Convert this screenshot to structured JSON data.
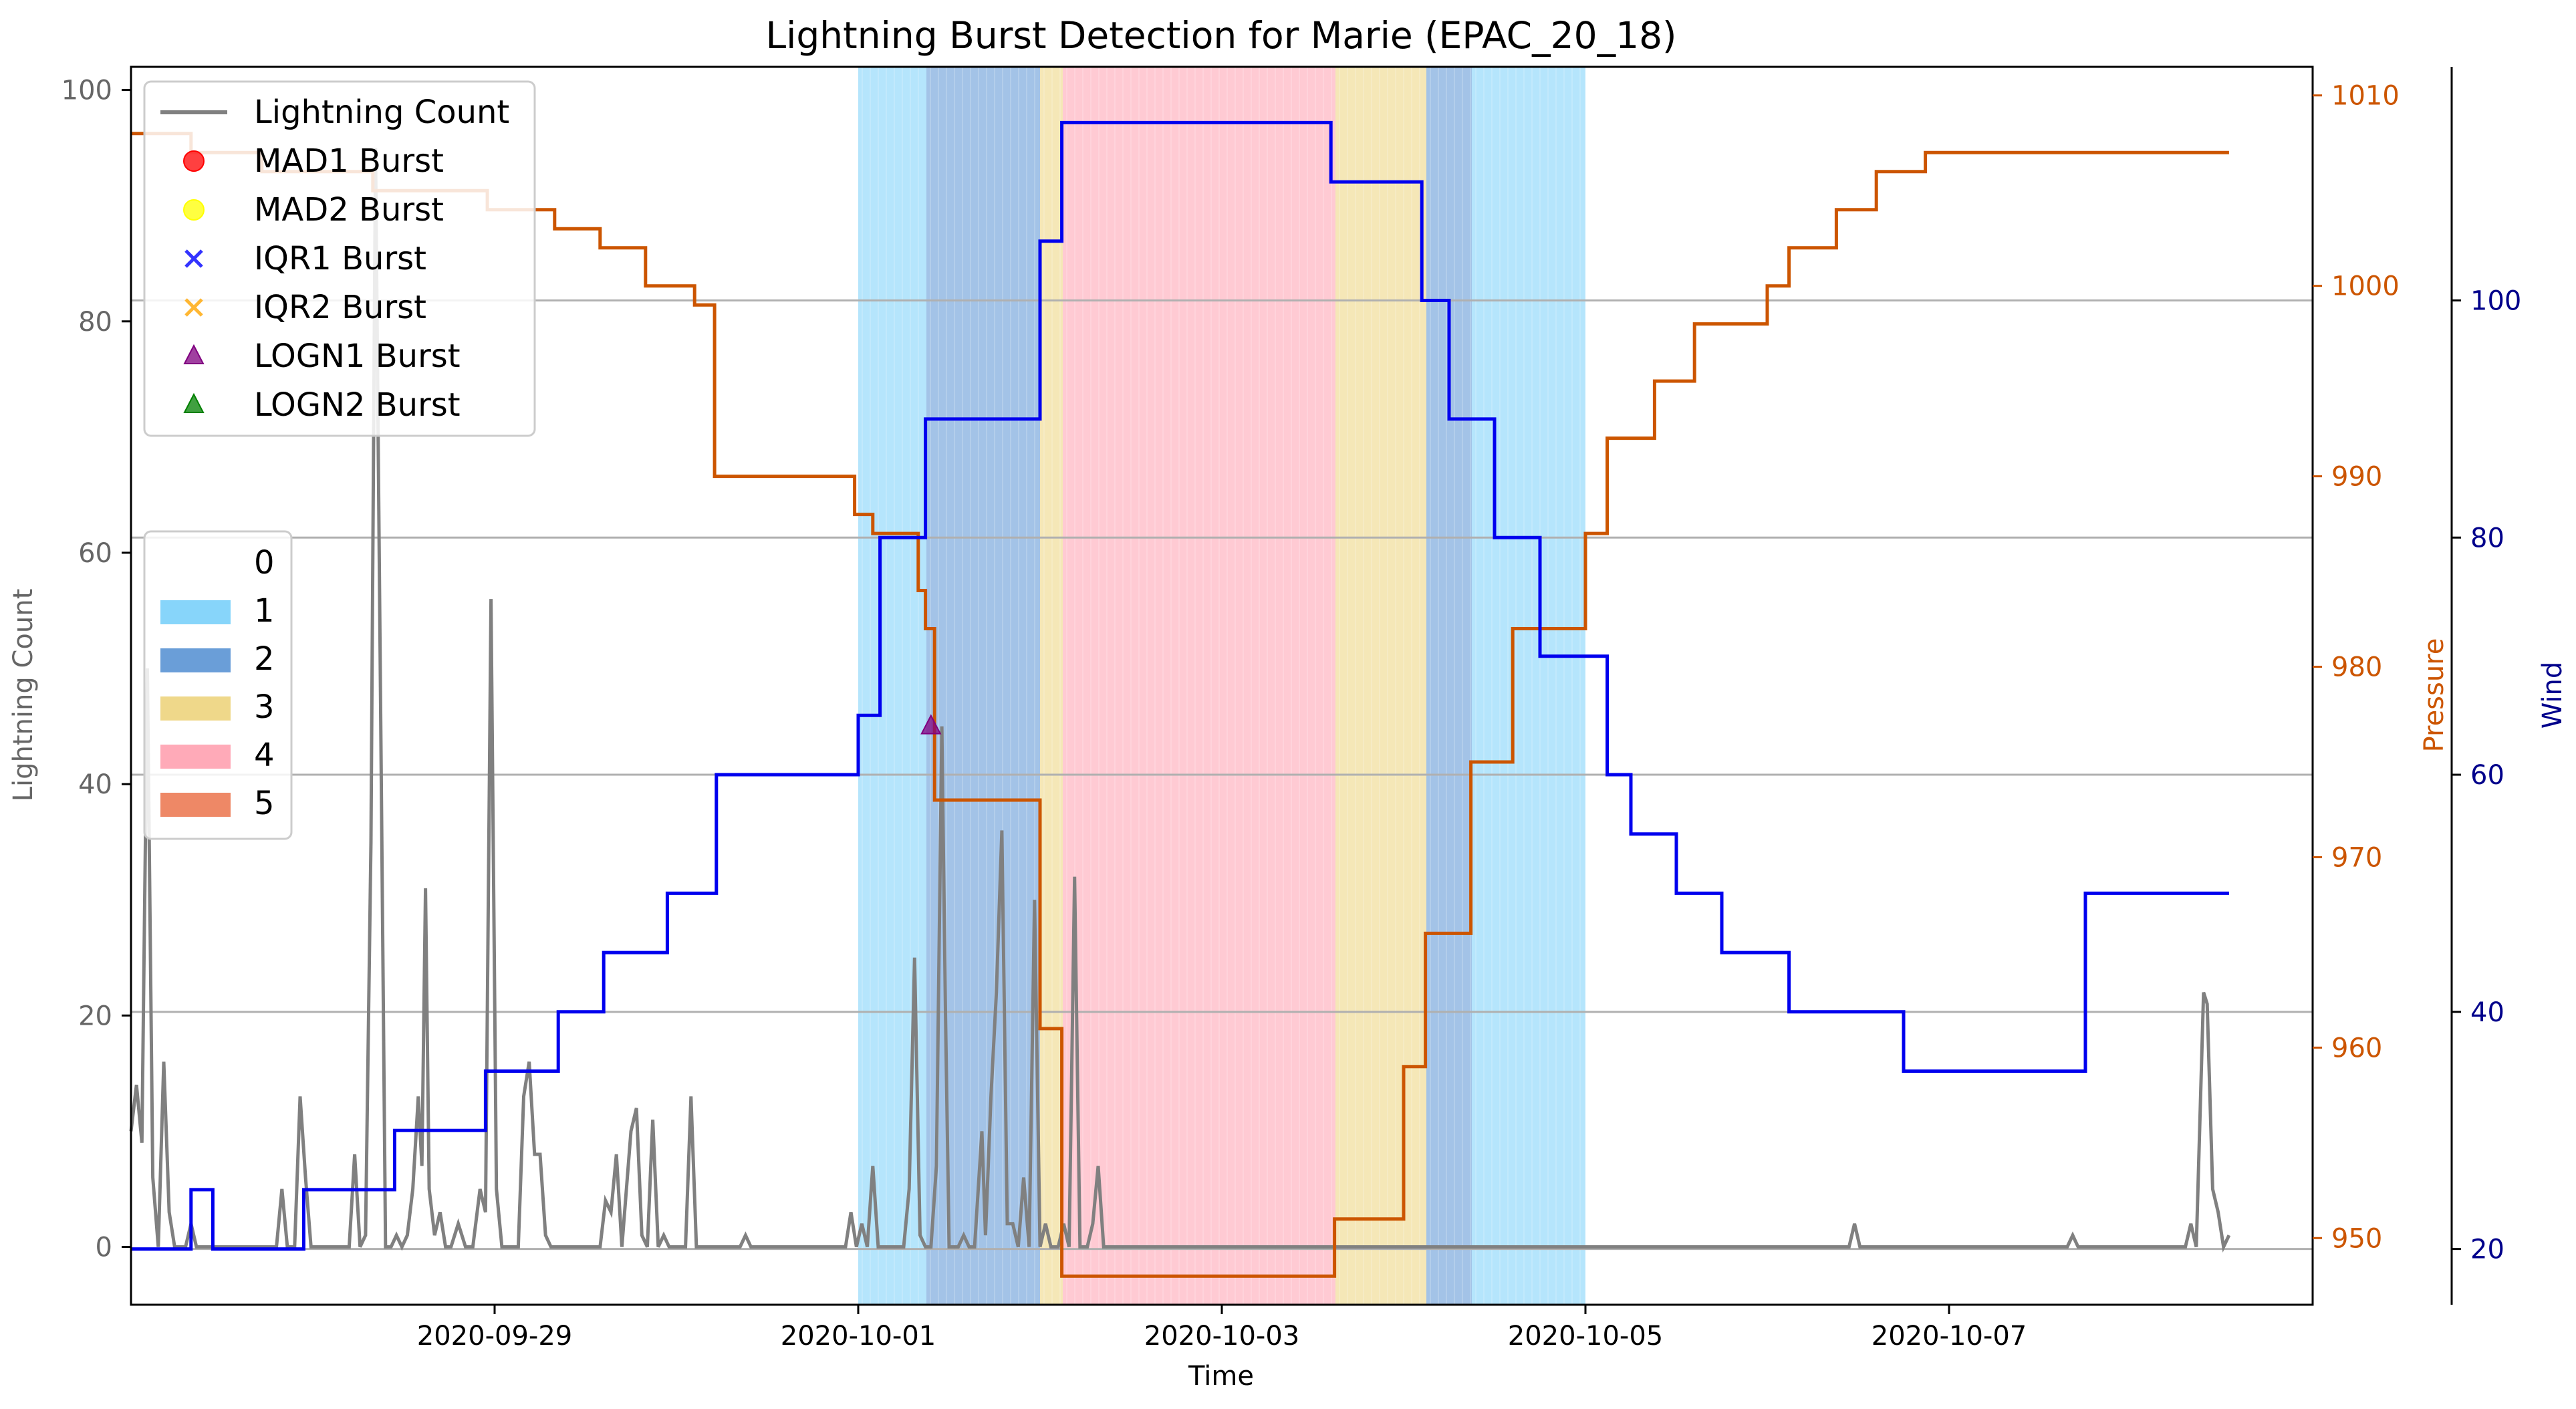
{
  "chart_data": {
    "type": "line",
    "title": "Lightning Burst Detection for Marie (EPAC_20_18)",
    "xlabel": "Time",
    "ylabel_left": "Lightning Count",
    "ylabel_pressure": "Pressure",
    "ylabel_wind": "Wind",
    "x_range": [
      "2020-09-27 18:00",
      "2020-10-08 06:00"
    ],
    "ylim_left": [
      -5,
      102
    ],
    "ylim_pressure": [
      946.5,
      1011.5
    ],
    "ylim_wind": [
      15.3,
      119.7
    ],
    "grid": "horizontal, on right axis",
    "x_ticks": [
      "2020-09-29",
      "2020-10-01",
      "2020-10-03",
      "2020-10-05",
      "2020-10-07"
    ],
    "x_tick_positions": [
      2,
      4,
      6,
      8,
      10
    ],
    "y_ticks_left": [
      0,
      20,
      40,
      60,
      80,
      100
    ],
    "y_ticks_pressure": [
      950,
      960,
      970,
      980,
      990,
      1000,
      1010
    ],
    "y_ticks_wind": [
      20,
      40,
      60,
      80,
      100
    ],
    "colors": {
      "lightning": "#808080",
      "pressure": "#cc5500",
      "wind": "#0000ee",
      "left_axis_text": "#666666",
      "pressure_axis_text": "#cc5500",
      "wind_axis_text": "#00008b"
    },
    "legend_series": [
      {
        "label": "Lightning Count",
        "marker": "line",
        "color": "#808080"
      },
      {
        "label": "MAD1 Burst",
        "marker": "circle",
        "color": "#ff0000"
      },
      {
        "label": "MAD2 Burst",
        "marker": "circle",
        "color": "#ffff00"
      },
      {
        "label": "IQR1 Burst",
        "marker": "x",
        "color": "#0000ff"
      },
      {
        "label": "IQR2 Burst",
        "marker": "x",
        "color": "#ffa500"
      },
      {
        "label": "LOGN1 Burst",
        "marker": "triangle",
        "color": "#800080"
      },
      {
        "label": "LOGN2 Burst",
        "marker": "triangle",
        "color": "#008000"
      }
    ],
    "legend_categories": [
      {
        "label": "0",
        "color": "#ffffff"
      },
      {
        "label": "1",
        "color": "#87d5fa"
      },
      {
        "label": "2",
        "color": "#6a9ed8"
      },
      {
        "label": "3",
        "color": "#efd88a"
      },
      {
        "label": "4",
        "color": "#ffaab8"
      },
      {
        "label": "5",
        "color": "#ee8866"
      }
    ],
    "category_spans": [
      {
        "start": 4.0,
        "end": 4.375,
        "category": 1
      },
      {
        "start": 4.375,
        "end": 5.0,
        "category": 2
      },
      {
        "start": 5.0,
        "end": 5.125,
        "category": 3
      },
      {
        "start": 5.125,
        "end": 6.625,
        "category": 4
      },
      {
        "start": 6.625,
        "end": 7.125,
        "category": 3
      },
      {
        "start": 7.125,
        "end": 7.375,
        "category": 2
      },
      {
        "start": 7.375,
        "end": 8.0,
        "category": 1
      }
    ],
    "lightning_count": [
      [
        0.0,
        10
      ],
      [
        0.03,
        14
      ],
      [
        0.06,
        9
      ],
      [
        0.09,
        50
      ],
      [
        0.12,
        6
      ],
      [
        0.15,
        0
      ],
      [
        0.18,
        16
      ],
      [
        0.21,
        3
      ],
      [
        0.24,
        0
      ],
      [
        0.3,
        0
      ],
      [
        0.33,
        2
      ],
      [
        0.36,
        0
      ],
      [
        0.45,
        0
      ],
      [
        0.8,
        0
      ],
      [
        0.83,
        5
      ],
      [
        0.86,
        0
      ],
      [
        0.9,
        0
      ],
      [
        0.93,
        13
      ],
      [
        0.96,
        6
      ],
      [
        0.99,
        0
      ],
      [
        1.05,
        0
      ],
      [
        1.1,
        0
      ],
      [
        1.2,
        0
      ],
      [
        1.23,
        8
      ],
      [
        1.26,
        0
      ],
      [
        1.29,
        1
      ],
      [
        1.32,
        35
      ],
      [
        1.345,
        95
      ],
      [
        1.37,
        52
      ],
      [
        1.4,
        0
      ],
      [
        1.43,
        0
      ],
      [
        1.46,
        1
      ],
      [
        1.49,
        0
      ],
      [
        1.52,
        1
      ],
      [
        1.55,
        5
      ],
      [
        1.58,
        13
      ],
      [
        1.6,
        7
      ],
      [
        1.62,
        31
      ],
      [
        1.64,
        5
      ],
      [
        1.67,
        1
      ],
      [
        1.7,
        3
      ],
      [
        1.73,
        0
      ],
      [
        1.76,
        0
      ],
      [
        1.8,
        2
      ],
      [
        1.84,
        0
      ],
      [
        1.88,
        0
      ],
      [
        1.92,
        5
      ],
      [
        1.95,
        3
      ],
      [
        1.98,
        56
      ],
      [
        2.01,
        5
      ],
      [
        2.04,
        0
      ],
      [
        2.1,
        0
      ],
      [
        2.13,
        0
      ],
      [
        2.16,
        13
      ],
      [
        2.19,
        16
      ],
      [
        2.22,
        8
      ],
      [
        2.25,
        8
      ],
      [
        2.28,
        1
      ],
      [
        2.31,
        0
      ],
      [
        2.5,
        0
      ],
      [
        2.58,
        0
      ],
      [
        2.61,
        4
      ],
      [
        2.64,
        3
      ],
      [
        2.67,
        8
      ],
      [
        2.7,
        0
      ],
      [
        2.75,
        10
      ],
      [
        2.78,
        12
      ],
      [
        2.81,
        1
      ],
      [
        2.84,
        0
      ],
      [
        2.87,
        11
      ],
      [
        2.9,
        0
      ],
      [
        2.93,
        1
      ],
      [
        2.96,
        0
      ],
      [
        3.0,
        0
      ],
      [
        3.05,
        0
      ],
      [
        3.08,
        13
      ],
      [
        3.11,
        0
      ],
      [
        3.2,
        0
      ],
      [
        3.35,
        0
      ],
      [
        3.38,
        1
      ],
      [
        3.41,
        0
      ],
      [
        3.6,
        0
      ],
      [
        3.93,
        0
      ],
      [
        3.96,
        3
      ],
      [
        3.99,
        0
      ],
      [
        4.02,
        2
      ],
      [
        4.05,
        0
      ],
      [
        4.08,
        7
      ],
      [
        4.11,
        0
      ],
      [
        4.2,
        0
      ],
      [
        4.25,
        0
      ],
      [
        4.28,
        5
      ],
      [
        4.31,
        25
      ],
      [
        4.34,
        1
      ],
      [
        4.37,
        0
      ],
      [
        4.4,
        0
      ],
      [
        4.43,
        7
      ],
      [
        4.46,
        45
      ],
      [
        4.48,
        20
      ],
      [
        4.5,
        0
      ],
      [
        4.55,
        0
      ],
      [
        4.58,
        1
      ],
      [
        4.61,
        0
      ],
      [
        4.64,
        0
      ],
      [
        4.68,
        10
      ],
      [
        4.7,
        1
      ],
      [
        4.73,
        13
      ],
      [
        4.76,
        22
      ],
      [
        4.79,
        36
      ],
      [
        4.82,
        2
      ],
      [
        4.85,
        2
      ],
      [
        4.88,
        0
      ],
      [
        4.91,
        6
      ],
      [
        4.94,
        0
      ],
      [
        4.97,
        30
      ],
      [
        5.0,
        0
      ],
      [
        5.03,
        2
      ],
      [
        5.06,
        0
      ],
      [
        5.1,
        0
      ],
      [
        5.13,
        2
      ],
      [
        5.16,
        0
      ],
      [
        5.19,
        32
      ],
      [
        5.22,
        0
      ],
      [
        5.26,
        0
      ],
      [
        5.29,
        2
      ],
      [
        5.32,
        7
      ],
      [
        5.35,
        0
      ],
      [
        5.5,
        0
      ],
      [
        6.0,
        0
      ],
      [
        7.0,
        0
      ],
      [
        8.0,
        0
      ],
      [
        9.0,
        0
      ],
      [
        9.45,
        0
      ],
      [
        9.48,
        2
      ],
      [
        9.51,
        0
      ],
      [
        10.0,
        0
      ],
      [
        10.65,
        0
      ],
      [
        10.68,
        1
      ],
      [
        10.71,
        0
      ],
      [
        11.0,
        0
      ],
      [
        11.3,
        0
      ],
      [
        11.33,
        2
      ],
      [
        11.36,
        0
      ],
      [
        11.4,
        22
      ],
      [
        11.42,
        21
      ],
      [
        11.45,
        5
      ],
      [
        11.48,
        3
      ],
      [
        11.51,
        0
      ],
      [
        11.54,
        1
      ]
    ],
    "pressure": [
      [
        0.0,
        1008
      ],
      [
        0.33,
        1007
      ],
      [
        0.72,
        1006
      ],
      [
        1.33,
        1005
      ],
      [
        1.96,
        1004
      ],
      [
        2.33,
        1003
      ],
      [
        2.58,
        1002
      ],
      [
        2.83,
        1000
      ],
      [
        3.1,
        999
      ],
      [
        3.21,
        990
      ],
      [
        3.98,
        988
      ],
      [
        4.08,
        987
      ],
      [
        4.33,
        984
      ],
      [
        4.37,
        982
      ],
      [
        4.42,
        973
      ],
      [
        5.0,
        961
      ],
      [
        5.12,
        948
      ],
      [
        6.62,
        951
      ],
      [
        7.0,
        959
      ],
      [
        7.12,
        966
      ],
      [
        7.37,
        975
      ],
      [
        7.6,
        982
      ],
      [
        8.0,
        987
      ],
      [
        8.12,
        992
      ],
      [
        8.38,
        995
      ],
      [
        8.6,
        998
      ],
      [
        9.0,
        1000
      ],
      [
        9.12,
        1002
      ],
      [
        9.38,
        1004
      ],
      [
        9.6,
        1006
      ],
      [
        9.87,
        1007
      ],
      [
        11.54,
        1007
      ]
    ],
    "wind": [
      [
        0.0,
        20
      ],
      [
        0.33,
        25
      ],
      [
        0.45,
        20
      ],
      [
        0.95,
        25
      ],
      [
        1.45,
        30
      ],
      [
        1.95,
        35
      ],
      [
        2.35,
        40
      ],
      [
        2.6,
        45
      ],
      [
        2.95,
        50
      ],
      [
        3.22,
        60
      ],
      [
        4.0,
        65
      ],
      [
        4.12,
        80
      ],
      [
        4.37,
        90
      ],
      [
        5.0,
        105
      ],
      [
        5.12,
        115
      ],
      [
        6.6,
        110
      ],
      [
        7.1,
        100
      ],
      [
        7.25,
        90
      ],
      [
        7.5,
        80
      ],
      [
        7.75,
        70
      ],
      [
        8.12,
        60
      ],
      [
        8.25,
        55
      ],
      [
        8.5,
        50
      ],
      [
        8.75,
        45
      ],
      [
        9.12,
        40
      ],
      [
        9.75,
        35
      ],
      [
        10.75,
        50
      ],
      [
        11.54,
        50
      ]
    ],
    "burst_markers": [
      {
        "label": "LOGN1 Burst",
        "x": 4.4,
        "y": 45
      }
    ]
  }
}
